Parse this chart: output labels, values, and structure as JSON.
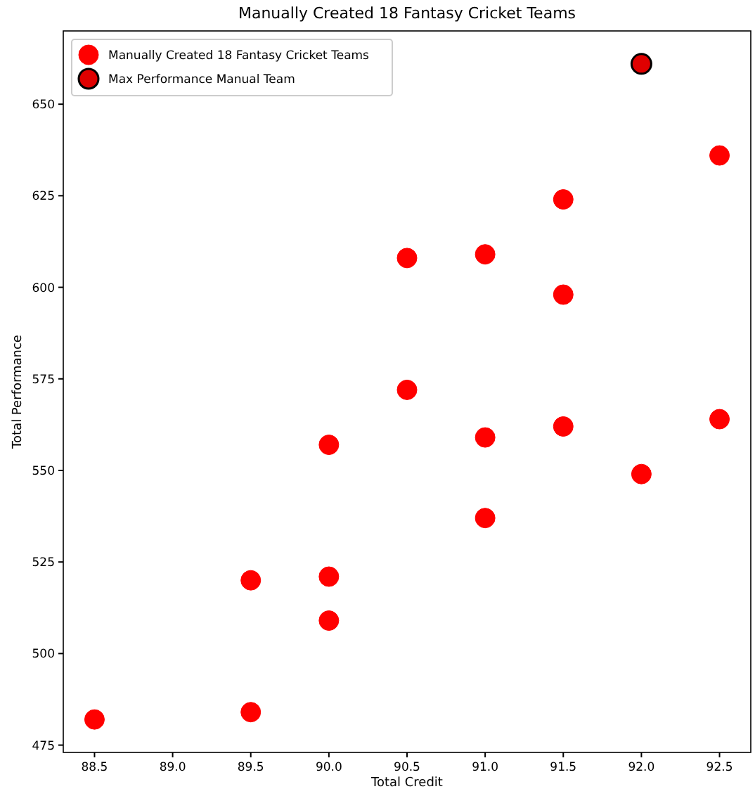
{
  "chart_data": {
    "type": "scatter",
    "title": "Manually Created 18 Fantasy Cricket Teams",
    "xlabel": "Total Credit",
    "ylabel": "Total Performance",
    "series": [
      {
        "name": "Manually Created 18 Fantasy Cricket Teams",
        "color": "#ff0000",
        "x": [
          88.5,
          89.5,
          89.5,
          90.0,
          90.0,
          90.0,
          90.5,
          90.5,
          91.0,
          91.0,
          91.0,
          91.5,
          91.5,
          91.5,
          92.0,
          92.5,
          92.5
        ],
        "values": [
          482,
          484,
          520,
          509,
          521,
          557,
          572,
          608,
          537,
          559,
          609,
          562,
          598,
          624,
          549,
          564,
          636
        ]
      },
      {
        "name": "Max Performance Manual Team",
        "color": "#e00000",
        "x": [
          92.0
        ],
        "values": [
          661
        ]
      }
    ],
    "xlim": [
      88.3,
      92.7
    ],
    "xticks": [
      {
        "value": 88.5,
        "label": "88.5"
      },
      {
        "value": 89.0,
        "label": "89.0"
      },
      {
        "value": 89.5,
        "label": "89.5"
      },
      {
        "value": 90.0,
        "label": "90.0"
      },
      {
        "value": 90.5,
        "label": "90.5"
      },
      {
        "value": 91.0,
        "label": "91.0"
      },
      {
        "value": 91.5,
        "label": "91.5"
      },
      {
        "value": 92.0,
        "label": "92.0"
      },
      {
        "value": 92.5,
        "label": "92.5"
      }
    ],
    "ylim": [
      473,
      670
    ],
    "yticks": [
      475,
      500,
      525,
      550,
      575,
      600,
      625,
      650
    ],
    "legend": "top left",
    "marker": "circle",
    "grid": false
  }
}
